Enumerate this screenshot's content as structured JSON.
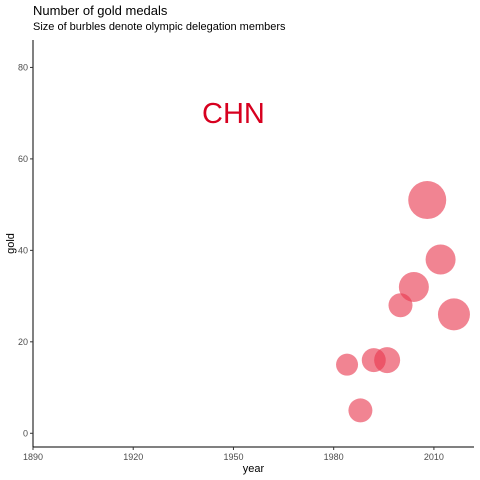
{
  "chart_data": {
    "type": "scatter",
    "title": "Number of gold medals",
    "subtitle": "Size of burbles denote olympic delegation members",
    "xlabel": "year",
    "ylabel": "gold",
    "xlim": [
      1890,
      2022
    ],
    "ylim": [
      -3,
      86
    ],
    "x_ticks": [
      1890,
      1920,
      1950,
      1980,
      2010
    ],
    "y_ticks": [
      0,
      20,
      40,
      60,
      80
    ],
    "grid": false,
    "annotation": "CHN",
    "colors": {
      "point": "#E8394F",
      "annotation": "#D7001F",
      "axis": "#000000"
    },
    "points": [
      {
        "x": 1984,
        "y": 15,
        "size": 11
      },
      {
        "x": 1988,
        "y": 5,
        "size": 12
      },
      {
        "x": 1992,
        "y": 16,
        "size": 12
      },
      {
        "x": 1996,
        "y": 16,
        "size": 13
      },
      {
        "x": 2000,
        "y": 28,
        "size": 12
      },
      {
        "x": 2004,
        "y": 32,
        "size": 15
      },
      {
        "x": 2008,
        "y": 51,
        "size": 19
      },
      {
        "x": 2012,
        "y": 38,
        "size": 15
      },
      {
        "x": 2016,
        "y": 26,
        "size": 16
      }
    ]
  }
}
